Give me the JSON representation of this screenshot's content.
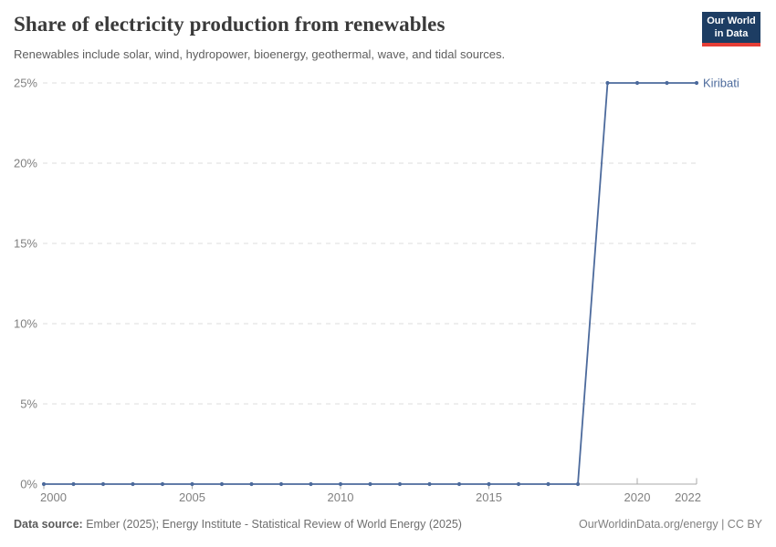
{
  "header": {
    "title": "Share of electricity production from renewables",
    "subtitle": "Renewables include solar, wind, hydropower, bioenergy, geothermal, wave, and tidal sources."
  },
  "logo": {
    "line1": "Our World",
    "line2": "in Data"
  },
  "chart_data": {
    "type": "line",
    "title": "Share of electricity production from renewables",
    "x": [
      2000,
      2001,
      2002,
      2003,
      2004,
      2005,
      2006,
      2007,
      2008,
      2009,
      2010,
      2011,
      2012,
      2013,
      2014,
      2015,
      2016,
      2017,
      2018,
      2019,
      2020,
      2021,
      2022
    ],
    "series": [
      {
        "name": "Kiribati",
        "values": [
          0,
          0,
          0,
          0,
          0,
          0,
          0,
          0,
          0,
          0,
          0,
          0,
          0,
          0,
          0,
          0,
          0,
          0,
          0,
          25,
          25,
          25,
          25
        ],
        "end_label": "Kiribati"
      }
    ],
    "xlim": [
      2000,
      2022
    ],
    "ylim": [
      0,
      25
    ],
    "y_ticks": [
      0,
      5,
      10,
      15,
      20,
      25
    ],
    "y_tick_suffix": "%",
    "x_ticks": [
      {
        "year": 2000,
        "label": "2000",
        "dir": "down",
        "anchor": "start"
      },
      {
        "year": 2005,
        "label": "2005",
        "dir": "down",
        "anchor": "middle"
      },
      {
        "year": 2010,
        "label": "2010",
        "dir": "down",
        "anchor": "middle"
      },
      {
        "year": 2015,
        "label": "2015",
        "dir": "down",
        "anchor": "middle"
      },
      {
        "year": 2020,
        "label": "2020",
        "dir": "up",
        "anchor": "middle"
      },
      {
        "year": 2022,
        "label": "2022",
        "dir": "up",
        "anchor": "end"
      }
    ],
    "grid": "horizontal-dashed",
    "legend_position": "end-of-line"
  },
  "colors": {
    "line": "#4c6a9c",
    "grid": "#dddddd",
    "axis": "#a8a8a8",
    "tick_label": "#808080",
    "end_label": "#4c6a9c",
    "logo_bg": "#1d3d63",
    "logo_accent": "#e63e36"
  },
  "footer": {
    "source_label": "Data source:",
    "source_text": " Ember (2025); Energy Institute - Statistical Review of World Energy (2025)",
    "attribution": "OurWorldinData.org/energy | CC BY"
  }
}
